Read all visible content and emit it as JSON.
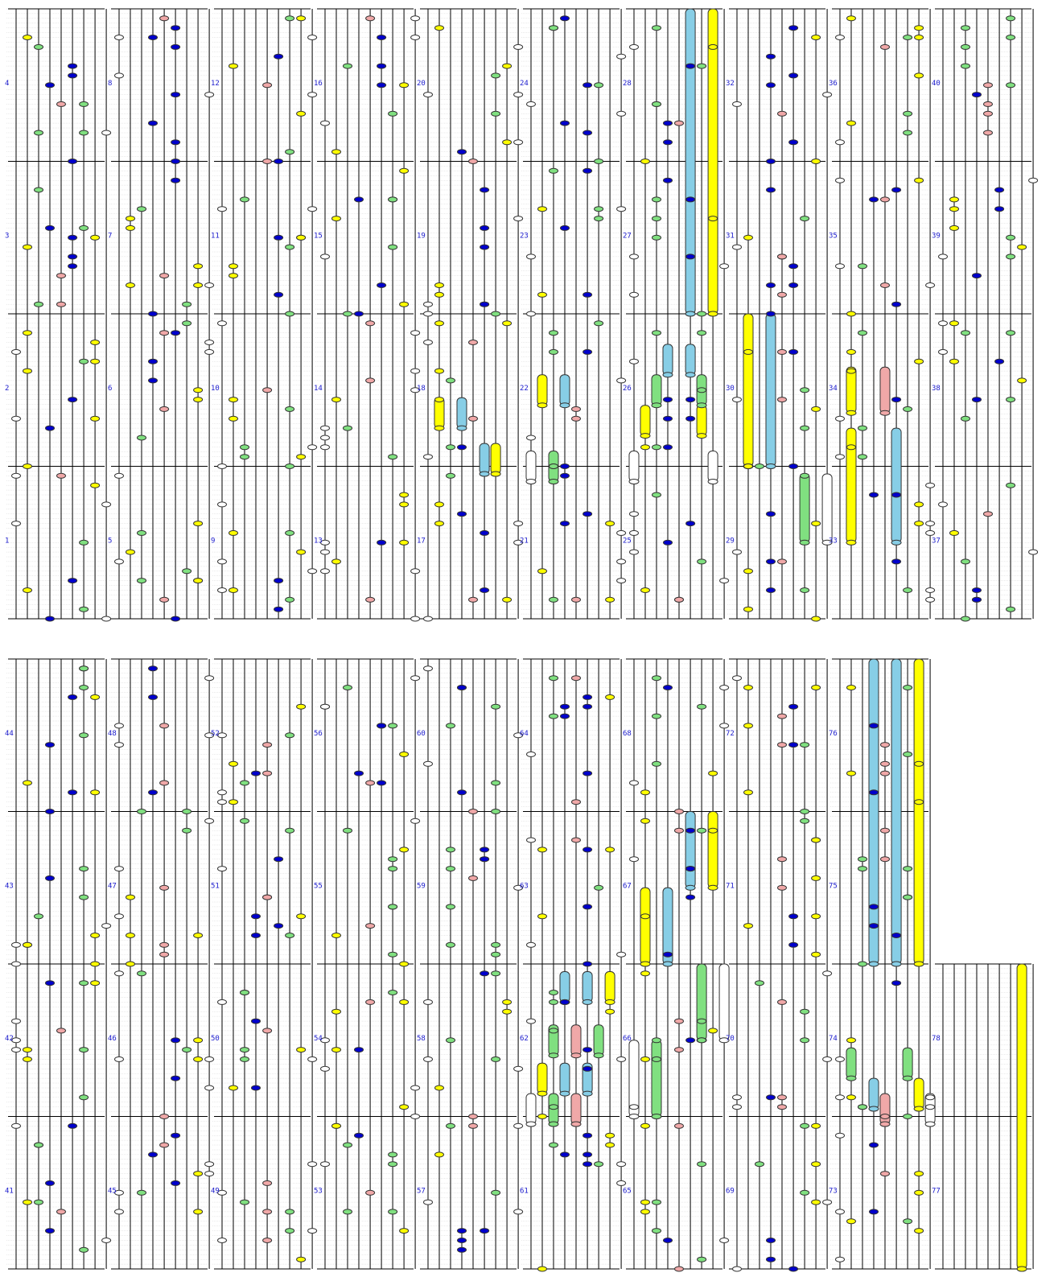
{
  "colors": {
    "background": "#ffffff",
    "lane": "#000000",
    "subgrid": "#d6d6d6",
    "measure_label": "#1a1acd",
    "white_note": "#ffffff",
    "yellow_note": "#ffff00",
    "blue_note": "#0000cc",
    "green_note": "#80e080",
    "pink_note": "#f0a8a8",
    "cyan_note": "#87cee6"
  },
  "note_types": [
    "white",
    "yellow",
    "blue",
    "green",
    "pink",
    "cyan"
  ],
  "measures": [
    "1",
    "2",
    "3",
    "4",
    "5",
    "6",
    "7",
    "8",
    "9",
    "10",
    "11",
    "12",
    "13",
    "14",
    "15",
    "16",
    "17",
    "18",
    "19",
    "20",
    "21",
    "22",
    "23",
    "24",
    "25",
    "26",
    "27",
    "28",
    "29",
    "30",
    "31",
    "32",
    "33",
    "34",
    "35",
    "36",
    "37",
    "38",
    "39",
    "40",
    "41",
    "42",
    "43",
    "44",
    "45",
    "46",
    "47",
    "48",
    "49",
    "50",
    "51",
    "52",
    "53",
    "54",
    "55",
    "56",
    "57",
    "58",
    "59",
    "60",
    "61",
    "62",
    "63",
    "64",
    "65",
    "66",
    "67",
    "68",
    "69",
    "70",
    "71",
    "72",
    "73",
    "74",
    "75",
    "76",
    "77",
    "78"
  ]
}
